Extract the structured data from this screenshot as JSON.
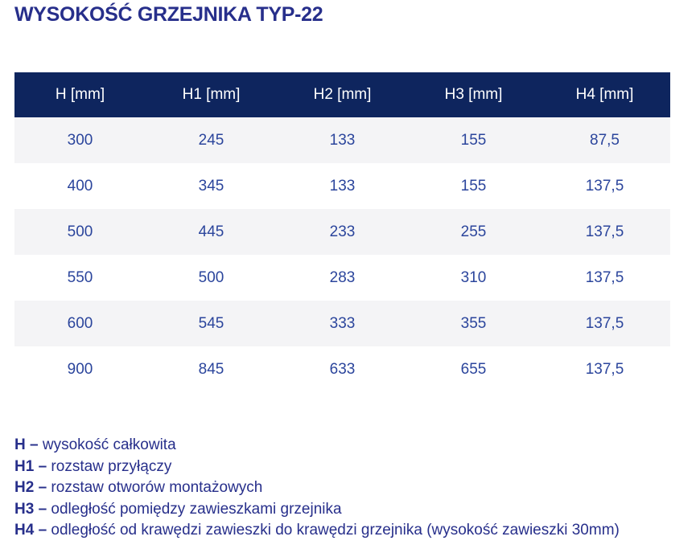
{
  "page": {
    "title": "WYSOKOŚĆ GRZEJNIKA TYP-22"
  },
  "table": {
    "columns": [
      "H [mm]",
      "H1 [mm]",
      "H2 [mm]",
      "H3 [mm]",
      "H4 [mm]"
    ],
    "rows": [
      [
        "300",
        "245",
        "133",
        "155",
        "87,5"
      ],
      [
        "400",
        "345",
        "133",
        "155",
        "137,5"
      ],
      [
        "500",
        "445",
        "233",
        "255",
        "137,5"
      ],
      [
        "550",
        "500",
        "283",
        "310",
        "137,5"
      ],
      [
        "600",
        "545",
        "333",
        "355",
        "137,5"
      ],
      [
        "900",
        "845",
        "633",
        "655",
        "137,5"
      ]
    ]
  },
  "legend": [
    {
      "term": "H –",
      "description": "wysokość całkowita"
    },
    {
      "term": "H1 –",
      "description": "rozstaw przyłączy"
    },
    {
      "term": "H2 –",
      "description": "rozstaw otworów montażowych"
    },
    {
      "term": "H3 –",
      "description": "odległość pomiędzy zawieszkami grzejnika"
    },
    {
      "term": "H4 –",
      "description": "odległość od krawędzi zawieszki do krawędzi grzejnika (wysokość zawieszki 30mm)"
    }
  ],
  "colors": {
    "header_bg": "#0e255e",
    "row_alt_bg": "#f4f4f6",
    "row_bg": "#ffffff",
    "cell_text": "#2b459c",
    "title_text": "#272f8b",
    "header_text": "#ffffff"
  }
}
